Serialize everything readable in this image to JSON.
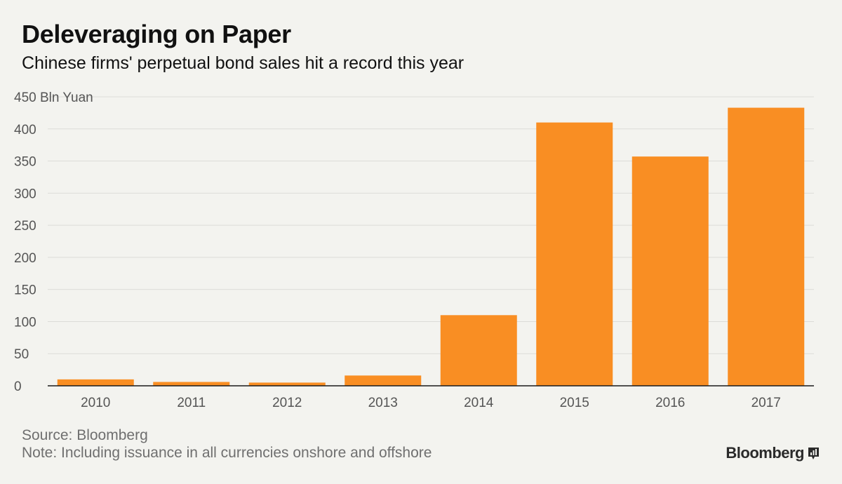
{
  "header": {
    "title": "Deleveraging on Paper",
    "subtitle": "Chinese firms' perpetual bond sales hit a record this year"
  },
  "footer": {
    "source": "Source: Bloomberg",
    "note": "Note: Including issuance in all currencies onshore and offshore",
    "brand": "Bloomberg"
  },
  "colors": {
    "bar": "#f98e23",
    "grid": "#dcdcd8",
    "axis": "#1a1a1a",
    "tick_text": "#555555",
    "background": "#f3f3ef"
  },
  "chart_data": {
    "type": "bar",
    "title": "Deleveraging on Paper",
    "subtitle": "Chinese firms' perpetual bond sales hit a record this year",
    "categories": [
      "2010",
      "2011",
      "2012",
      "2013",
      "2014",
      "2015",
      "2016",
      "2017"
    ],
    "values": [
      10,
      6,
      5,
      16,
      110,
      410,
      357,
      433
    ],
    "unit_label": "Bln Yuan",
    "xlabel": "",
    "ylabel": "",
    "ylim": [
      0,
      450
    ],
    "yticks": [
      0,
      50,
      100,
      150,
      200,
      250,
      300,
      350,
      400,
      450
    ],
    "grid": true,
    "legend": "none"
  }
}
